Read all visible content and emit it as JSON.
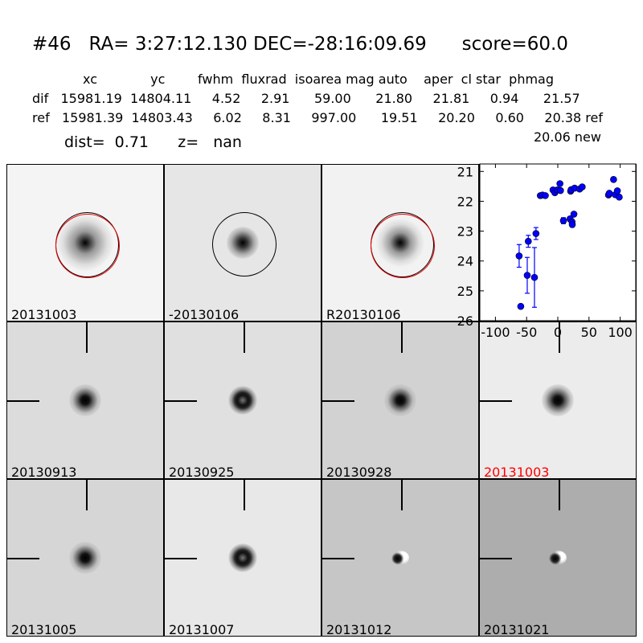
{
  "header": {
    "title": "#46   RA= 3:27:12.130 DEC=-28:16:09.69      score=60.0",
    "columns_line": "xc             yc        fwhm  fluxrad  isoarea mag auto    aper  cl star  phmag",
    "dif_line": "dif   15981.19  14804.11     4.52     2.91      59.00      21.80     21.81     0.94      21.57",
    "ref_line": "ref   15981.39  14803.43     6.02     8.31     997.00      19.51     20.20     0.60     20.38 ref",
    "new_line": "20.06 new",
    "dist_line": "dist=  0.71      z=   nan"
  },
  "panels": [
    {
      "label": "20131003",
      "label_color": "#000000",
      "bg": "#f4f4f4"
    },
    {
      "label": "-20130106",
      "label_color": "#000000",
      "bg": "#e6e6e6"
    },
    {
      "label": "R20130106",
      "label_color": "#000000",
      "bg": "#f2f2f2"
    },
    {
      "label": "20130913",
      "label_color": "#000000",
      "bg": "#dcdcdc"
    },
    {
      "label": "20130925",
      "label_color": "#000000",
      "bg": "#e0e0e0"
    },
    {
      "label": "20130928",
      "label_color": "#000000",
      "bg": "#d2d2d2"
    },
    {
      "label": "20131003",
      "label_color": "#ff0000",
      "bg": "#ececec"
    },
    {
      "label": "20131005",
      "label_color": "#000000",
      "bg": "#d6d6d6"
    },
    {
      "label": "20131007",
      "label_color": "#000000",
      "bg": "#e8e8e8"
    },
    {
      "label": "20131012",
      "label_color": "#000000",
      "bg": "#c6c6c6"
    },
    {
      "label": "20131021",
      "label_color": "#000000",
      "bg": "#adadad"
    }
  ],
  "chart_data": {
    "type": "scatter",
    "title": "",
    "xlabel": "",
    "ylabel": "",
    "xlim": [
      -125,
      125
    ],
    "ylim": [
      26,
      20.75
    ],
    "y_inverted": true,
    "grid": false,
    "marker_color": "#0000ff",
    "x_ticks": [
      "-100",
      "-50",
      "0",
      "50",
      "100"
    ],
    "y_ticks": [
      "21",
      "22",
      "23",
      "24",
      "25",
      "26"
    ],
    "points": [
      {
        "x": -62,
        "y": 23.83,
        "err": 0.38
      },
      {
        "x": -59.4,
        "y": 25.52,
        "err": 0.05
      },
      {
        "x": -47.3,
        "y": 23.34,
        "err": 0.2
      },
      {
        "x": -49,
        "y": 24.48,
        "err": 0.6
      },
      {
        "x": -35,
        "y": 23.08,
        "err": 0.2
      },
      {
        "x": -37.4,
        "y": 24.55,
        "err": 1.0
      },
      {
        "x": -28,
        "y": 21.81,
        "err": 0.03
      },
      {
        "x": -24.5,
        "y": 21.79,
        "err": 0.03
      },
      {
        "x": -20,
        "y": 21.81,
        "err": 0.03
      },
      {
        "x": -7.7,
        "y": 21.62,
        "err": 0.03
      },
      {
        "x": -4.7,
        "y": 21.71,
        "err": 0.03
      },
      {
        "x": -0.9,
        "y": 21.62,
        "err": 0.03
      },
      {
        "x": 3.4,
        "y": 21.41,
        "err": 0.03
      },
      {
        "x": 4.3,
        "y": 21.64,
        "err": 0.03
      },
      {
        "x": 9,
        "y": 22.65,
        "err": 0.1
      },
      {
        "x": 19.7,
        "y": 22.59,
        "err": 0.08
      },
      {
        "x": 22.8,
        "y": 22.69,
        "err": 0.08
      },
      {
        "x": 23.2,
        "y": 22.78,
        "err": 0.08
      },
      {
        "x": 25.8,
        "y": 22.43,
        "err": 0.06
      },
      {
        "x": 20.6,
        "y": 21.66,
        "err": 0.03
      },
      {
        "x": 21.5,
        "y": 21.61,
        "err": 0.03
      },
      {
        "x": 27,
        "y": 21.56,
        "err": 0.03
      },
      {
        "x": 35,
        "y": 21.59,
        "err": 0.03
      },
      {
        "x": 39.1,
        "y": 21.52,
        "err": 0.03
      },
      {
        "x": 81.3,
        "y": 21.79,
        "err": 0.03
      },
      {
        "x": 82.6,
        "y": 21.73,
        "err": 0.03
      },
      {
        "x": 89.4,
        "y": 21.27,
        "err": 0.03
      },
      {
        "x": 92,
        "y": 21.78,
        "err": 0.03
      },
      {
        "x": 95.5,
        "y": 21.65,
        "err": 0.03
      },
      {
        "x": 98.5,
        "y": 21.86,
        "err": 0.03
      }
    ]
  }
}
